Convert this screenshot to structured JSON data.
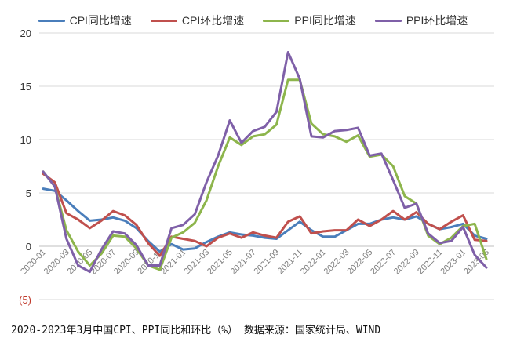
{
  "chart_data": {
    "type": "line",
    "title": "",
    "xlabel": "",
    "ylabel": "",
    "ylim": [
      -5,
      20
    ],
    "yticks": [
      -5,
      0,
      5,
      10,
      15,
      20
    ],
    "ytick_labels": [
      "(5)",
      "0",
      "5",
      "10",
      "15",
      "20"
    ],
    "ytick_colors": [
      "#c0392b",
      "#333333",
      "#333333",
      "#333333",
      "#333333",
      "#333333"
    ],
    "xtick_labels": [
      "2020-01",
      "2020-03",
      "2020-05",
      "2020-07",
      "2020-09",
      "2020-11",
      "2021-01",
      "2021-03",
      "2021-05",
      "2021-07",
      "2021-09",
      "2021-11",
      "2022-01",
      "2022-03",
      "2022-05",
      "2022-07",
      "2022-09",
      "2022-11",
      "2023-01",
      "2023-03"
    ],
    "grid": true,
    "legend_position": "top",
    "x": [
      "2020-01",
      "2020-02",
      "2020-03",
      "2020-04",
      "2020-05",
      "2020-06",
      "2020-07",
      "2020-08",
      "2020-09",
      "2020-10",
      "2020-11",
      "2020-12",
      "2021-01",
      "2021-02",
      "2021-03",
      "2021-04",
      "2021-05",
      "2021-06",
      "2021-07",
      "2021-08",
      "2021-09",
      "2021-10",
      "2021-11",
      "2021-12",
      "2022-01",
      "2022-02",
      "2022-03",
      "2022-04",
      "2022-05",
      "2022-06",
      "2022-07",
      "2022-08",
      "2022-09",
      "2022-10",
      "2022-11",
      "2022-12",
      "2023-01",
      "2023-02",
      "2023-03"
    ],
    "series": [
      {
        "name": "CPI同比增速",
        "color": "#4a7ebb",
        "values": [
          5.4,
          5.2,
          4.3,
          3.3,
          2.4,
          2.5,
          2.7,
          2.4,
          1.7,
          0.5,
          -0.5,
          0.2,
          -0.3,
          -0.2,
          0.4,
          0.9,
          1.3,
          1.1,
          1.0,
          0.8,
          0.7,
          1.5,
          2.3,
          1.5,
          0.9,
          0.9,
          1.5,
          2.1,
          2.1,
          2.5,
          2.7,
          2.5,
          2.8,
          2.1,
          1.6,
          1.8,
          2.1,
          1.0,
          0.7
        ]
      },
      {
        "name": "CPI环比增速",
        "color": "#c0504d",
        "values": [
          6.8,
          6.0,
          3.1,
          2.5,
          1.7,
          2.4,
          3.3,
          2.9,
          2.0,
          0.3,
          -0.9,
          0.9,
          0.7,
          0.5,
          0.0,
          0.8,
          1.2,
          0.8,
          1.3,
          1.0,
          0.8,
          2.3,
          2.8,
          1.2,
          1.4,
          1.5,
          1.5,
          2.5,
          1.9,
          2.5,
          3.3,
          2.5,
          3.2,
          2.1,
          1.6,
          2.3,
          2.9,
          0.6,
          0.5
        ]
      },
      {
        "name": "PPI同比增速",
        "color": "#8db54c",
        "values": [
          7.0,
          5.6,
          1.5,
          -0.5,
          -1.8,
          -0.7,
          1.0,
          0.9,
          -0.2,
          -1.8,
          -2.2,
          0.8,
          1.3,
          2.2,
          4.3,
          7.5,
          10.2,
          9.5,
          10.3,
          10.5,
          11.4,
          15.6,
          15.6,
          11.5,
          10.5,
          10.3,
          9.8,
          10.4,
          8.4,
          8.6,
          7.5,
          4.7,
          4.0,
          1.0,
          0.2,
          0.8,
          1.9,
          2.1,
          -1.2
        ]
      },
      {
        "name": "PPI环比增速",
        "color": "#7f60a8",
        "values": [
          7.0,
          5.6,
          0.7,
          -1.8,
          -2.4,
          -0.3,
          1.4,
          1.2,
          0.1,
          -1.8,
          -1.8,
          1.7,
          2.0,
          3.0,
          6.0,
          8.5,
          11.8,
          9.7,
          10.8,
          11.2,
          12.6,
          18.2,
          15.7,
          10.3,
          10.2,
          10.8,
          10.9,
          11.1,
          8.5,
          8.7,
          6.2,
          3.6,
          4.0,
          1.2,
          0.3,
          0.5,
          1.8,
          -0.8,
          -2.0
        ]
      }
    ]
  },
  "caption": "2020-2023年3月中国CPI、PPI同比和环比（%） 数据来源：国家统计局、WIND"
}
